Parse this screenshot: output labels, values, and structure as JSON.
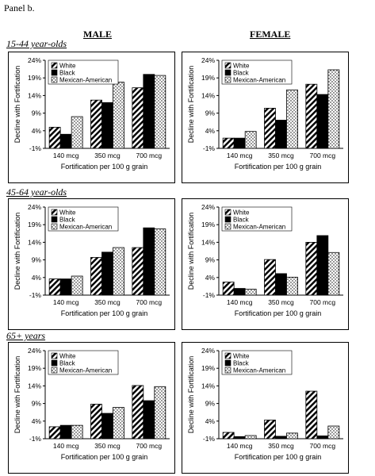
{
  "page": {
    "panel_label": "Panel b.",
    "columns": [
      "MALE",
      "FEMALE"
    ],
    "rows": [
      "15-44 year-olds",
      "45-64 year-olds",
      "65+ years"
    ]
  },
  "colors": {
    "white": "#ffffff",
    "black": "#000000",
    "mexican_american": "#ffffff"
  },
  "chart_data": [
    {
      "type": "bar",
      "group": "MALE",
      "age": "15-44 year-olds",
      "categories": [
        "140 mcg",
        "350 mcg",
        "700 mcg"
      ],
      "series": [
        {
          "name": "White",
          "values": [
            5.0,
            12.7,
            16.2
          ],
          "pattern": "diagonal-stripes"
        },
        {
          "name": "Black",
          "values": [
            3.0,
            12.0,
            20.0
          ],
          "pattern": "solid-black"
        },
        {
          "name": "Mexican-American",
          "values": [
            8.0,
            17.8,
            19.7
          ],
          "pattern": "dots"
        }
      ],
      "xlabel": "Fortification per 100 g grain",
      "ylabel": "Decline with Fortification",
      "yticks": [
        "-1%",
        "4%",
        "9%",
        "14%",
        "19%",
        "24%"
      ],
      "ylim": [
        -1,
        24
      ],
      "legend": "top-left"
    },
    {
      "type": "bar",
      "group": "FEMALE",
      "age": "15-44 year-olds",
      "categories": [
        "140 mcg",
        "350 mcg",
        "700 mcg"
      ],
      "series": [
        {
          "name": "White",
          "values": [
            1.9,
            10.4,
            17.2
          ],
          "pattern": "diagonal-stripes"
        },
        {
          "name": "Black",
          "values": [
            1.9,
            7.0,
            14.3
          ],
          "pattern": "solid-black"
        },
        {
          "name": "Mexican-American",
          "values": [
            3.8,
            15.6,
            21.3
          ],
          "pattern": "dots"
        }
      ],
      "xlabel": "Fortification per 100 g grain",
      "ylabel": "Decline with Fortification",
      "yticks": [
        "-1%",
        "4%",
        "9%",
        "14%",
        "19%",
        "24%"
      ],
      "ylim": [
        -1,
        24
      ],
      "legend": "top-left"
    },
    {
      "type": "bar",
      "group": "MALE",
      "age": "45-64 year-olds",
      "categories": [
        "140 mcg",
        "350 mcg",
        "700 mcg"
      ],
      "series": [
        {
          "name": "White",
          "values": [
            3.6,
            9.7,
            12.5
          ],
          "pattern": "diagonal-stripes"
        },
        {
          "name": "Black",
          "values": [
            3.6,
            11.2,
            18.1
          ],
          "pattern": "solid-black"
        },
        {
          "name": "Mexican-American",
          "values": [
            4.4,
            12.5,
            17.8
          ],
          "pattern": "dots"
        }
      ],
      "xlabel": "Fortification per 100 g grain",
      "ylabel": "Decline with Fortification",
      "yticks": [
        "-1%",
        "4%",
        "9%",
        "14%",
        "19%",
        "24%"
      ],
      "ylim": [
        -1,
        24
      ],
      "legend": "top-left"
    },
    {
      "type": "bar",
      "group": "FEMALE",
      "age": "45-64 year-olds",
      "categories": [
        "140 mcg",
        "350 mcg",
        "700 mcg"
      ],
      "series": [
        {
          "name": "White",
          "values": [
            2.7,
            9.1,
            14.0
          ],
          "pattern": "diagonal-stripes"
        },
        {
          "name": "Black",
          "values": [
            0.9,
            5.1,
            15.9
          ],
          "pattern": "solid-black"
        },
        {
          "name": "Mexican-American",
          "values": [
            0.7,
            4.1,
            11.1
          ],
          "pattern": "dots"
        }
      ],
      "xlabel": "Fortification per 100 g grain",
      "ylabel": "Decline with Fortification",
      "yticks": [
        "-1%",
        "4%",
        "9%",
        "14%",
        "19%",
        "24%"
      ],
      "ylim": [
        -1,
        24
      ],
      "legend": "top-left"
    },
    {
      "type": "bar",
      "group": "MALE",
      "age": "65+ years",
      "categories": [
        "140 mcg",
        "350 mcg",
        "700 mcg"
      ],
      "series": [
        {
          "name": "White",
          "values": [
            2.4,
            8.8,
            14.1
          ],
          "pattern": "diagonal-stripes"
        },
        {
          "name": "Black",
          "values": [
            2.8,
            6.2,
            9.8
          ],
          "pattern": "solid-black"
        },
        {
          "name": "Mexican-American",
          "values": [
            2.8,
            7.9,
            13.8
          ],
          "pattern": "dots"
        }
      ],
      "xlabel": "Fortification per 100 g grain",
      "ylabel": "Decline with Fortification",
      "yticks": [
        "-1%",
        "4%",
        "9%",
        "14%",
        "19%",
        "24%"
      ],
      "ylim": [
        -1,
        24
      ],
      "legend": "top-left"
    },
    {
      "type": "bar",
      "group": "FEMALE",
      "age": "65+ years",
      "categories": [
        "140 mcg",
        "350 mcg",
        "700 mcg"
      ],
      "series": [
        {
          "name": "White",
          "values": [
            0.8,
            4.3,
            12.5
          ],
          "pattern": "diagonal-stripes"
        },
        {
          "name": "Black",
          "values": [
            -0.4,
            -0.3,
            -0.2
          ],
          "pattern": "solid-black"
        },
        {
          "name": "Mexican-American",
          "values": [
            -0.1,
            0.6,
            2.6
          ],
          "pattern": "dots"
        }
      ],
      "xlabel": "Fortification per 100 g grain",
      "ylabel": "Decline with Fortification",
      "yticks": [
        "-1%",
        "4%",
        "9%",
        "14%",
        "19%",
        "24%"
      ],
      "ylim": [
        -1,
        24
      ],
      "legend": "top-left"
    }
  ]
}
